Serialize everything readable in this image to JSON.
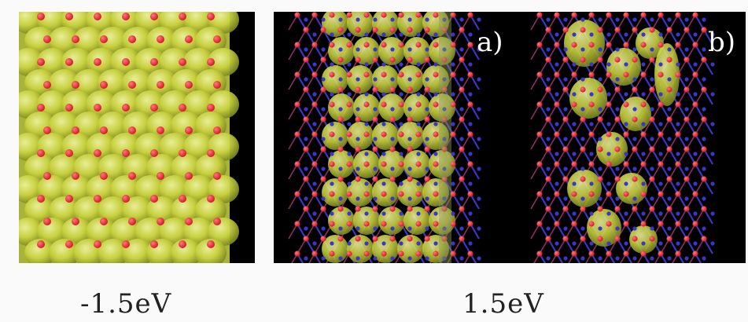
{
  "panels": {
    "a_label": "a)",
    "b_label": "b)"
  },
  "captions": {
    "left": "-1.5eV",
    "right": "1.5eV"
  },
  "colors": {
    "background": "#000000",
    "density": "#c9d23e",
    "oxygen_atom": "#d8182a",
    "bond": "#3b36c8"
  }
}
